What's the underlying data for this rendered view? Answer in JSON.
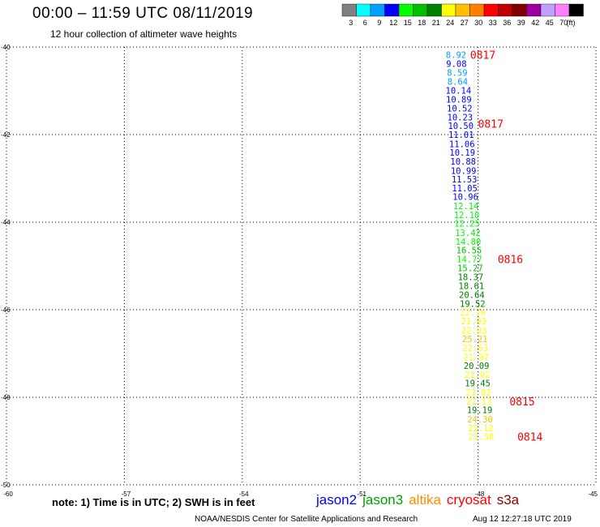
{
  "header": {
    "title": "00:00 – 11:59 UTC 08/11/2019",
    "subtitle": "12 hour collection of altimeter wave heights"
  },
  "legend": {
    "unit": "(ft)",
    "bins": [
      {
        "label": "3",
        "color": "#808080"
      },
      {
        "label": "6",
        "color": "#00ffff"
      },
      {
        "label": "9",
        "color": "#00a0ff"
      },
      {
        "label": "12",
        "color": "#0000ff"
      },
      {
        "label": "15",
        "color": "#00ff00"
      },
      {
        "label": "18",
        "color": "#00c000"
      },
      {
        "label": "21",
        "color": "#008000"
      },
      {
        "label": "24",
        "color": "#ffff00"
      },
      {
        "label": "27",
        "color": "#ffc000"
      },
      {
        "label": "30",
        "color": "#ff8000"
      },
      {
        "label": "33",
        "color": "#ff0000"
      },
      {
        "label": "36",
        "color": "#c00000"
      },
      {
        "label": "39",
        "color": "#800000"
      },
      {
        "label": "42",
        "color": "#a000a0"
      },
      {
        "label": "45",
        "color": "#c0a0ff"
      },
      {
        "label": "70",
        "color": "#ff80ff"
      },
      {
        "label": "",
        "color": "#000000"
      }
    ]
  },
  "chart_data": {
    "type": "scatter",
    "x_range": [
      -60,
      -45
    ],
    "y_range": [
      -40,
      -50
    ],
    "x_ticks": [
      "-60",
      "-57",
      "-54",
      "-51",
      "-48",
      "-45"
    ],
    "y_ticks": [
      "-40",
      "-42",
      "-44",
      "-46",
      "-48",
      "-50"
    ],
    "grid": true,
    "points": [
      {
        "lon": -48.56,
        "lat": -40.18,
        "swh": "8.92"
      },
      {
        "lon": -48.55,
        "lat": -40.38,
        "swh": "9.08"
      },
      {
        "lon": -48.53,
        "lat": -40.58,
        "swh": "8.59"
      },
      {
        "lon": -48.52,
        "lat": -40.79,
        "swh": "8.64"
      },
      {
        "lon": -48.5,
        "lat": -40.99,
        "swh": "10.14"
      },
      {
        "lon": -48.49,
        "lat": -41.19,
        "swh": "10.89"
      },
      {
        "lon": -48.47,
        "lat": -41.4,
        "swh": "10.52"
      },
      {
        "lon": -48.46,
        "lat": -41.6,
        "swh": "10.23"
      },
      {
        "lon": -48.44,
        "lat": -41.8,
        "swh": "10.50"
      },
      {
        "lon": -48.43,
        "lat": -42.0,
        "swh": "11.01"
      },
      {
        "lon": -48.41,
        "lat": -42.21,
        "swh": "11.06"
      },
      {
        "lon": -48.4,
        "lat": -42.41,
        "swh": "10.19"
      },
      {
        "lon": -48.38,
        "lat": -42.61,
        "swh": "10.88"
      },
      {
        "lon": -48.37,
        "lat": -42.82,
        "swh": "10.99"
      },
      {
        "lon": -48.35,
        "lat": -43.02,
        "swh": "11.53"
      },
      {
        "lon": -48.34,
        "lat": -43.22,
        "swh": "11.05"
      },
      {
        "lon": -48.32,
        "lat": -43.42,
        "swh": "10.96"
      },
      {
        "lon": -48.31,
        "lat": -43.63,
        "swh": "12.14"
      },
      {
        "lon": -48.29,
        "lat": -43.83,
        "swh": "12.10"
      },
      {
        "lon": -48.28,
        "lat": -44.03,
        "swh": "12.25"
      },
      {
        "lon": -48.26,
        "lat": -44.24,
        "swh": "13.42"
      },
      {
        "lon": -48.25,
        "lat": -44.44,
        "swh": "14.80"
      },
      {
        "lon": -48.23,
        "lat": -44.64,
        "swh": "16.55"
      },
      {
        "lon": -48.22,
        "lat": -44.84,
        "swh": "14.77"
      },
      {
        "lon": -48.2,
        "lat": -45.05,
        "swh": "15.27"
      },
      {
        "lon": -48.19,
        "lat": -45.25,
        "swh": "18.37"
      },
      {
        "lon": -48.17,
        "lat": -45.45,
        "swh": "18.61"
      },
      {
        "lon": -48.16,
        "lat": -45.66,
        "swh": "20.64"
      },
      {
        "lon": -48.14,
        "lat": -45.86,
        "swh": "19.52"
      },
      {
        "lon": -48.13,
        "lat": -46.06,
        "swh": "22.76"
      },
      {
        "lon": -48.11,
        "lat": -46.26,
        "swh": "21.93"
      },
      {
        "lon": -48.1,
        "lat": -46.47,
        "swh": "22.93"
      },
      {
        "lon": -48.08,
        "lat": -46.67,
        "swh": "25.21"
      },
      {
        "lon": -48.07,
        "lat": -46.87,
        "swh": "22.63"
      },
      {
        "lon": -48.05,
        "lat": -47.08,
        "swh": "21.97"
      },
      {
        "lon": -48.04,
        "lat": -47.28,
        "swh": "20.09"
      },
      {
        "lon": -48.02,
        "lat": -47.48,
        "swh": "21.92"
      },
      {
        "lon": -48.01,
        "lat": -47.68,
        "swh": "19.45"
      },
      {
        "lon": -47.99,
        "lat": -47.89,
        "swh": "21.82"
      },
      {
        "lon": -47.98,
        "lat": -48.09,
        "swh": "22.13"
      },
      {
        "lon": -47.96,
        "lat": -48.29,
        "swh": "19.19"
      },
      {
        "lon": -47.95,
        "lat": -48.5,
        "swh": "24.30"
      },
      {
        "lon": -47.93,
        "lat": -48.7,
        "swh": "22.12"
      },
      {
        "lon": -47.92,
        "lat": -48.9,
        "swh": "21.58"
      }
    ],
    "time_labels": [
      {
        "text": "0817",
        "lon": -48.2,
        "lat": -40.18
      },
      {
        "text": "0817",
        "lon": -48.0,
        "lat": -41.75
      },
      {
        "text": "0816",
        "lon": -47.5,
        "lat": -44.84
      },
      {
        "text": "0815",
        "lon": -47.2,
        "lat": -48.09
      },
      {
        "text": "0814",
        "lon": -47.0,
        "lat": -48.9
      }
    ],
    "label_color": "#ff0000"
  },
  "footer": {
    "note": "note:  1) Time is in UTC;  2) SWH is in feet",
    "missions": [
      {
        "name": "jason2",
        "color": "#0000ff"
      },
      {
        "name": "jason3",
        "color": "#00a000"
      },
      {
        "name": "altika",
        "color": "#ff8c00"
      },
      {
        "name": "cryosat",
        "color": "#ff0000"
      },
      {
        "name": "s3a",
        "color": "#8b0000"
      }
    ],
    "credit": "NOAA/NESDIS Center for Satellite Applications and Research",
    "timestamp": "Aug 12 12:27:18 UTC 2019"
  }
}
